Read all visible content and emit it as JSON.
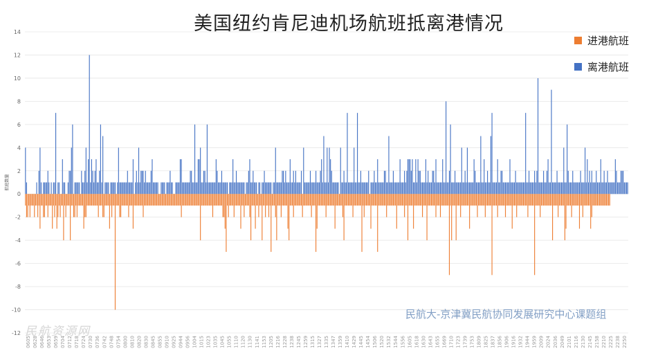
{
  "title": "美国纽约肯尼迪机场航班抵离港情况",
  "legend": [
    {
      "label": "进港航班",
      "color": "#ED7D31"
    },
    {
      "label": "离港航班",
      "color": "#4472C4"
    }
  ],
  "watermark": {
    "credit": "民航大-京津冀民航协同发展研究中心课题组",
    "logo": "民航资源网"
  },
  "chart_data": {
    "type": "bar",
    "title": "美国纽约肯尼迪机场航班抵离港情况",
    "ylabel": "航班数量",
    "ylim": [
      -12,
      14
    ],
    "yticks": [
      -12,
      -10,
      -8,
      -6,
      -4,
      -2,
      0,
      2,
      4,
      6,
      8,
      10,
      12,
      14
    ],
    "grid": true,
    "legend_position": "top-right",
    "series": [
      {
        "name": "离港航班",
        "color": "#4472C4",
        "values": [
          4,
          1,
          0,
          0,
          0,
          0,
          0,
          0,
          0,
          0,
          1,
          0,
          2,
          4,
          1,
          0,
          1,
          1,
          1,
          1,
          2,
          1,
          0,
          1,
          0,
          1,
          1,
          7,
          0,
          1,
          1,
          0,
          0,
          3,
          1,
          1,
          0,
          0,
          1,
          2,
          2,
          4,
          6,
          0,
          1,
          1,
          1,
          1,
          1,
          0,
          2,
          1,
          1,
          2,
          4,
          1,
          3,
          12,
          1,
          3,
          2,
          1,
          2,
          3,
          1,
          1,
          2,
          6,
          1,
          5,
          0,
          1,
          1,
          1,
          1,
          0,
          1,
          1,
          1,
          1,
          1,
          0,
          1,
          4,
          1,
          1,
          1,
          1,
          1,
          1,
          1,
          2,
          1,
          1,
          1,
          1,
          3,
          0,
          1,
          2,
          1,
          4,
          1,
          2,
          2,
          2,
          1,
          2,
          1,
          1,
          1,
          1,
          2,
          3,
          1,
          1,
          1,
          1,
          1,
          0,
          0,
          1,
          1,
          1,
          1,
          0,
          1,
          1,
          1,
          2,
          1,
          1,
          0,
          0,
          1,
          1,
          1,
          1,
          3,
          3,
          1,
          1,
          1,
          1,
          1,
          1,
          1,
          2,
          2,
          1,
          1,
          6,
          1,
          1,
          3,
          3,
          4,
          1,
          1,
          2,
          2,
          1,
          6,
          1,
          1,
          1,
          1,
          1,
          1,
          1,
          3,
          2,
          1,
          1,
          1,
          2,
          1,
          1,
          1,
          1,
          1,
          0,
          1,
          1,
          1,
          3,
          1,
          1,
          2,
          1,
          1,
          1,
          1,
          1,
          1,
          1,
          0,
          1,
          1,
          2,
          3,
          1,
          1,
          2,
          1,
          1,
          1,
          0,
          1,
          1,
          0,
          1,
          1,
          2,
          1,
          1,
          1,
          1,
          1,
          1,
          0,
          1,
          1,
          4,
          1,
          1,
          1,
          1,
          1,
          2,
          2,
          1,
          2,
          1,
          1,
          1,
          3,
          1,
          1,
          2,
          1,
          2,
          1,
          1,
          1,
          1,
          2,
          0,
          4,
          1,
          1,
          1,
          1,
          1,
          2,
          1,
          1,
          1,
          1,
          2,
          1,
          1,
          1,
          2,
          3,
          1,
          5,
          1,
          1,
          4,
          1,
          4,
          3,
          2,
          1,
          1,
          1,
          1,
          1,
          1,
          0,
          4,
          1,
          1,
          2,
          1,
          1,
          7,
          1,
          1,
          1,
          1,
          1,
          4,
          1,
          1,
          7,
          1,
          1,
          2,
          1,
          1,
          1,
          1,
          1,
          1,
          2,
          0,
          1,
          1,
          1,
          2,
          1,
          1,
          3,
          1,
          1,
          1,
          1,
          1,
          2,
          2,
          1,
          1,
          5,
          1,
          1,
          1,
          2,
          1,
          1,
          1,
          1,
          1,
          3,
          1,
          1,
          1,
          2,
          1,
          2,
          3,
          3,
          3,
          2,
          3,
          1,
          1,
          3,
          1,
          3,
          2,
          2,
          1,
          1,
          1,
          1,
          3,
          1,
          2,
          1,
          1,
          1,
          2,
          2,
          1,
          3,
          1,
          1,
          1,
          1,
          1,
          3,
          1,
          1,
          8,
          1,
          1,
          2,
          6,
          1,
          1,
          1,
          2,
          1,
          1,
          1,
          1,
          1,
          4,
          1,
          1,
          2,
          1,
          4,
          1,
          1,
          1,
          1,
          1,
          3,
          2,
          1,
          1,
          1,
          1,
          5,
          1,
          1,
          3,
          1,
          1,
          2,
          1,
          1,
          5,
          7,
          1,
          1,
          1,
          1,
          3,
          1,
          1,
          2,
          2,
          1,
          1,
          1,
          1,
          1,
          1,
          3,
          1,
          1,
          1,
          1,
          2,
          1,
          1,
          1,
          1,
          1,
          1,
          1,
          1,
          7,
          1,
          1,
          2,
          1,
          1,
          1,
          1,
          2,
          1,
          2,
          10,
          1,
          1,
          1,
          1,
          2,
          1,
          1,
          2,
          3,
          1,
          1,
          9,
          1,
          1,
          1,
          1,
          2,
          1,
          1,
          1,
          1,
          1,
          4,
          1,
          1,
          6,
          2,
          1,
          1,
          1,
          2,
          1,
          1,
          1,
          1,
          1,
          1,
          2,
          1,
          1,
          1,
          4,
          1,
          3,
          1,
          2,
          1,
          2,
          1,
          1,
          1,
          2,
          1,
          1,
          1,
          3,
          1,
          1,
          2,
          1,
          1,
          2,
          1,
          1,
          1,
          1,
          1,
          1,
          3,
          2,
          1,
          1,
          1,
          2,
          2,
          2,
          1,
          1,
          1,
          1
        ]
      },
      {
        "name": "进港航班",
        "color": "#ED7D31",
        "values": [
          -1,
          -2,
          -2,
          -1,
          -2,
          -1,
          -1,
          -1,
          -2,
          -1,
          -1,
          -2,
          -1,
          -3,
          -1,
          -1,
          -2,
          -2,
          -1,
          -1,
          -2,
          -1,
          -1,
          -1,
          -3,
          -1,
          -2,
          -1,
          -3,
          -2,
          -1,
          -2,
          -1,
          -1,
          -4,
          -1,
          -2,
          -1,
          -1,
          -1,
          -4,
          -1,
          -1,
          -2,
          -2,
          -1,
          -2,
          -1,
          -1,
          -1,
          -1,
          -1,
          -3,
          -2,
          -2,
          -1,
          -1,
          -1,
          -1,
          -1,
          -1,
          -1,
          -1,
          -1,
          -1,
          -2,
          -1,
          -1,
          -1,
          -2,
          -2,
          -1,
          -1,
          -1,
          -1,
          -3,
          -1,
          -2,
          -1,
          -1,
          -10,
          -1,
          -1,
          -1,
          -2,
          -2,
          -1,
          -1,
          -1,
          -1,
          -1,
          -1,
          -2,
          -1,
          -1,
          -1,
          -3,
          -1,
          -1,
          -1,
          -1,
          -1,
          -1,
          -1,
          -1,
          -2,
          -1,
          -1,
          -1,
          -1,
          -1,
          -1,
          -1,
          -1,
          -1,
          -1,
          -1,
          -1,
          -1,
          -1,
          -1,
          -1,
          -1,
          -1,
          -1,
          -1,
          -1,
          -1,
          -1,
          -1,
          -1,
          -1,
          -1,
          -1,
          -1,
          -1,
          -1,
          -1,
          -1,
          -2,
          -1,
          -1,
          -1,
          -1,
          -1,
          -1,
          -1,
          -1,
          -1,
          -1,
          -1,
          -1,
          -1,
          -1,
          -1,
          -1,
          -4,
          -1,
          -1,
          -1,
          -1,
          -1,
          -1,
          -1,
          -1,
          -1,
          -1,
          -2,
          -1,
          -1,
          -1,
          -1,
          -1,
          -1,
          -1,
          -1,
          -2,
          -2,
          -3,
          -5,
          -1,
          -2,
          -1,
          -1,
          -1,
          -1,
          -2,
          -1,
          -1,
          -1,
          -1,
          -1,
          -3,
          -1,
          -1,
          -2,
          -1,
          -1,
          -1,
          -1,
          -2,
          -4,
          -1,
          -1,
          -1,
          -3,
          -1,
          -1,
          -2,
          -1,
          -1,
          -4,
          -1,
          -1,
          -2,
          -1,
          -1,
          -2,
          -1,
          -5,
          -1,
          -1,
          -1,
          -2,
          -4,
          -1,
          -1,
          -1,
          -2,
          -1,
          -1,
          -1,
          -1,
          -1,
          -3,
          -4,
          -1,
          -1,
          -1,
          -2,
          -1,
          -1,
          -1,
          -1,
          -1,
          -1,
          -1,
          -2,
          -1,
          -1,
          -1,
          -1,
          -1,
          -1,
          -1,
          -2,
          -1,
          -1,
          -1,
          -5,
          -3,
          -1,
          -1,
          -1,
          -1,
          -1,
          -1,
          -1,
          -2,
          -1,
          -1,
          -1,
          -1,
          -1,
          -1,
          -1,
          -3,
          -1,
          -1,
          -1,
          -1,
          -1,
          -1,
          -2,
          -4,
          -1,
          -1,
          -1,
          -1,
          -1,
          -1,
          -1,
          -2,
          -1,
          -1,
          -1,
          -1,
          -1,
          -1,
          -1,
          -5,
          -1,
          -2,
          -1,
          -1,
          -1,
          -1,
          -1,
          -3,
          -1,
          -1,
          -1,
          -1,
          -1,
          -5,
          -1,
          -1,
          -1,
          -1,
          -1,
          -1,
          -1,
          -2,
          -1,
          -1,
          -1,
          -1,
          -1,
          -1,
          -1,
          -1,
          -3,
          -1,
          -1,
          -1,
          -1,
          -1,
          -1,
          -2,
          -1,
          -1,
          -4,
          -1,
          -1,
          -1,
          -1,
          -3,
          -1,
          -1,
          -1,
          -1,
          -1,
          -1,
          -1,
          -2,
          -1,
          -1,
          -1,
          -4,
          -1,
          -1,
          -1,
          -1,
          -1,
          -1,
          -1,
          -2,
          -1,
          -1,
          -1,
          -2,
          -1,
          -1,
          -1,
          -1,
          -1,
          -1,
          -1,
          -7,
          -1,
          -4,
          -1,
          -1,
          -1,
          -4,
          -1,
          -1,
          -1,
          -2,
          -1,
          -1,
          -1,
          -1,
          -1,
          -1,
          -1,
          -3,
          -1,
          -1,
          -1,
          -1,
          -1,
          -1,
          -2,
          -1,
          -1,
          -1,
          -1,
          -1,
          -1,
          -2,
          -1,
          -1,
          -1,
          -1,
          -1,
          -7,
          -1,
          -1,
          -1,
          -1,
          -2,
          -1,
          -1,
          -1,
          -1,
          -1,
          -1,
          -2,
          -1,
          -1,
          -1,
          -1,
          -1,
          -3,
          -1,
          -1,
          -1,
          -2,
          -1,
          -1,
          -1,
          -1,
          -1,
          -1,
          -1,
          -1,
          -1,
          -2,
          -1,
          -1,
          -1,
          -1,
          -1,
          -7,
          -1,
          -1,
          -1,
          -1,
          -2,
          -1,
          -1,
          -1,
          -1,
          -1,
          -1,
          -1,
          -1,
          -1,
          -1,
          -4,
          -1,
          -1,
          -1,
          -1,
          -2,
          -1,
          -1,
          -1,
          -1,
          -1,
          -4,
          -3,
          -1,
          -1,
          -1,
          -1,
          -2,
          -1,
          -1,
          -1,
          -1,
          -1,
          -1,
          -3,
          -1,
          -1,
          -2,
          -1,
          -1,
          -1,
          -1,
          -1,
          -1,
          -3,
          -2,
          -1,
          -1,
          -1,
          -1,
          -1,
          -1,
          -1,
          -1,
          -1,
          -1,
          -1,
          -1,
          -1,
          -1,
          -1,
          -1
        ]
      }
    ],
    "x_tick_labels": [
      "0605",
      "0628",
      "0646",
      "0653",
      "0659",
      "0704",
      "0712",
      "0718",
      "0724",
      "0730",
      "0736",
      "0742",
      "0748",
      "0754",
      "0800",
      "0810",
      "0820",
      "0830",
      "0845",
      "0855",
      "0910",
      "0925",
      "0944",
      "0956",
      "1004",
      "1015",
      "1023",
      "1035",
      "1045",
      "1055",
      "1110",
      "1120",
      "1130",
      "1141",
      "1153",
      "1205",
      "1216",
      "1228",
      "1238",
      "1245",
      "1259",
      "1315",
      "1327",
      "1335",
      "1347",
      "1359",
      "1410",
      "1429",
      "1445",
      "1454",
      "1506",
      "1520",
      "1532",
      "1544",
      "1556",
      "1605",
      "1618",
      "1630",
      "1643",
      "1655",
      "1669",
      "1710",
      "1723",
      "1739",
      "1753",
      "1809",
      "1825",
      "1837",
      "1856",
      "1906",
      "1916",
      "1932",
      "1944",
      "1959",
      "2009",
      "2024",
      "2036",
      "2049",
      "2101",
      "2116",
      "2130",
      "2145",
      "2158",
      "2210",
      "2225",
      "2238",
      "2250"
    ]
  }
}
